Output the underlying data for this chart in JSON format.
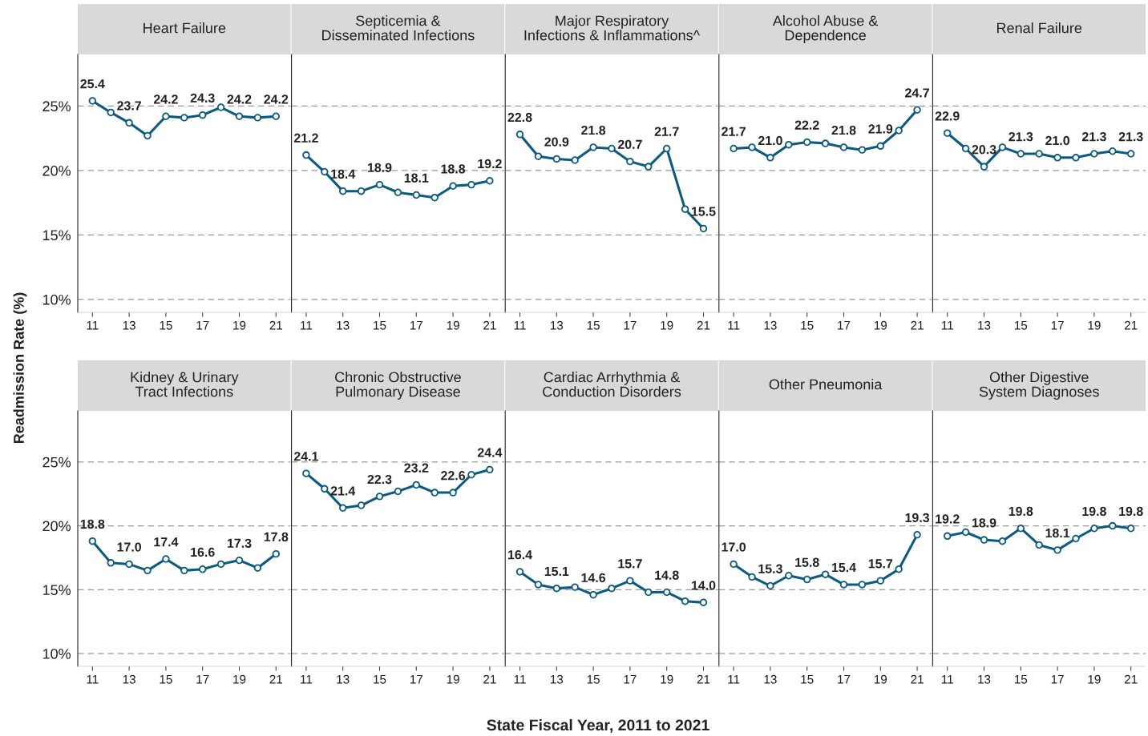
{
  "chart_data": [
    {
      "type": "line",
      "title": "Heart Failure",
      "ylabel": "Readmission Rate (%)",
      "x": [
        11,
        12,
        13,
        14,
        15,
        16,
        17,
        18,
        19,
        20,
        21
      ],
      "xlim": [
        10.2,
        21.8
      ],
      "xticks": [
        11,
        13,
        15,
        17,
        19,
        21
      ],
      "ylim": [
        9,
        29
      ],
      "yticks": [
        {
          "value": 10,
          "label": "10%"
        },
        {
          "value": 15,
          "label": "15%"
        },
        {
          "value": 20,
          "label": "20%"
        },
        {
          "value": 25,
          "label": "25%"
        }
      ],
      "grid": "y",
      "marker": "circle",
      "line_style": "solid",
      "tick_labels": "xy",
      "series": [
        {
          "color": "#0b5a80",
          "values": [
            25.4,
            24.5,
            23.7,
            22.7,
            24.2,
            24.1,
            24.3,
            24.9,
            24.2,
            24.1,
            24.2
          ],
          "value_labels": [
            "25.4",
            null,
            "23.7",
            null,
            "24.2",
            null,
            "24.3",
            null,
            "24.2",
            null,
            "24.2"
          ]
        }
      ]
    },
    {
      "type": "line",
      "title": "Septicemia &\nDisseminated Infections",
      "x": [
        11,
        12,
        13,
        14,
        15,
        16,
        17,
        18,
        19,
        20,
        21
      ],
      "xlim": [
        10.2,
        21.8
      ],
      "xticks": [
        11,
        13,
        15,
        17,
        19,
        21
      ],
      "ylim": [
        9,
        29
      ],
      "yticks": [
        {
          "value": 10,
          "label": null
        },
        {
          "value": 15,
          "label": null
        },
        {
          "value": 20,
          "label": null
        },
        {
          "value": 25,
          "label": null
        }
      ],
      "grid": "y",
      "marker": "circle",
      "line_style": "solid",
      "tick_labels": "x",
      "series": [
        {
          "color": "#0b5a80",
          "values": [
            21.2,
            19.9,
            18.4,
            18.4,
            18.9,
            18.3,
            18.1,
            17.9,
            18.8,
            18.9,
            19.2
          ],
          "value_labels": [
            "21.2",
            null,
            "18.4",
            null,
            "18.9",
            null,
            "18.1",
            null,
            "18.8",
            null,
            "19.2"
          ]
        }
      ]
    },
    {
      "type": "line",
      "title": "Major Respiratory\nInfections & Inflammations^",
      "x": [
        11,
        12,
        13,
        14,
        15,
        16,
        17,
        18,
        19,
        20,
        21
      ],
      "xlim": [
        10.2,
        21.8
      ],
      "xticks": [
        11,
        13,
        15,
        17,
        19,
        21
      ],
      "ylim": [
        9,
        29
      ],
      "yticks": [
        {
          "value": 10,
          "label": null
        },
        {
          "value": 15,
          "label": null
        },
        {
          "value": 20,
          "label": null
        },
        {
          "value": 25,
          "label": null
        }
      ],
      "grid": "y",
      "marker": "circle",
      "line_style": "solid",
      "tick_labels": "x",
      "series": [
        {
          "color": "#0b5a80",
          "values": [
            22.8,
            21.1,
            20.9,
            20.8,
            21.8,
            21.7,
            20.7,
            20.3,
            21.7,
            17.0,
            15.5
          ],
          "value_labels": [
            "22.8",
            null,
            "20.9",
            null,
            "21.8",
            null,
            "20.7",
            null,
            "21.7",
            null,
            "15.5"
          ]
        }
      ]
    },
    {
      "type": "line",
      "title": "Alcohol Abuse &\nDependence",
      "x": [
        11,
        12,
        13,
        14,
        15,
        16,
        17,
        18,
        19,
        20,
        21
      ],
      "xlim": [
        10.2,
        21.8
      ],
      "xticks": [
        11,
        13,
        15,
        17,
        19,
        21
      ],
      "ylim": [
        9,
        29
      ],
      "yticks": [
        {
          "value": 10,
          "label": null
        },
        {
          "value": 15,
          "label": null
        },
        {
          "value": 20,
          "label": null
        },
        {
          "value": 25,
          "label": null
        }
      ],
      "grid": "y",
      "marker": "circle",
      "line_style": "solid",
      "tick_labels": "x",
      "series": [
        {
          "color": "#0b5a80",
          "values": [
            21.7,
            21.8,
            21.0,
            22.0,
            22.2,
            22.1,
            21.8,
            21.6,
            21.9,
            23.1,
            24.7
          ],
          "value_labels": [
            "21.7",
            null,
            "21.0",
            null,
            "22.2",
            null,
            "21.8",
            null,
            "21.9",
            null,
            "24.7"
          ]
        }
      ]
    },
    {
      "type": "line",
      "title": "Renal Failure",
      "x": [
        11,
        12,
        13,
        14,
        15,
        16,
        17,
        18,
        19,
        20,
        21
      ],
      "xlim": [
        10.2,
        21.8
      ],
      "xticks": [
        11,
        13,
        15,
        17,
        19,
        21
      ],
      "ylim": [
        9,
        29
      ],
      "yticks": [
        {
          "value": 10,
          "label": null
        },
        {
          "value": 15,
          "label": null
        },
        {
          "value": 20,
          "label": null
        },
        {
          "value": 25,
          "label": null
        }
      ],
      "grid": "y",
      "marker": "circle",
      "line_style": "solid",
      "tick_labels": "x",
      "series": [
        {
          "color": "#0b5a80",
          "values": [
            22.9,
            21.7,
            20.3,
            21.8,
            21.3,
            21.3,
            21.0,
            21.0,
            21.3,
            21.5,
            21.3
          ],
          "value_labels": [
            "22.9",
            null,
            "20.3",
            null,
            "21.3",
            null,
            "21.0",
            null,
            "21.3",
            null,
            "21.3"
          ]
        }
      ]
    },
    {
      "type": "line",
      "title": "Kidney & Urinary\nTract Infections",
      "x": [
        11,
        12,
        13,
        14,
        15,
        16,
        17,
        18,
        19,
        20,
        21
      ],
      "xlim": [
        10.2,
        21.8
      ],
      "xticks": [
        11,
        13,
        15,
        17,
        19,
        21
      ],
      "ylim": [
        9,
        29
      ],
      "yticks": [
        {
          "value": 10,
          "label": "10%"
        },
        {
          "value": 15,
          "label": "15%"
        },
        {
          "value": 20,
          "label": "20%"
        },
        {
          "value": 25,
          "label": "25%"
        }
      ],
      "grid": "y",
      "marker": "circle",
      "line_style": "solid",
      "tick_labels": "xy",
      "series": [
        {
          "color": "#0b5a80",
          "values": [
            18.8,
            17.1,
            17.0,
            16.5,
            17.4,
            16.5,
            16.6,
            17.0,
            17.3,
            16.7,
            17.8
          ],
          "value_labels": [
            "18.8",
            null,
            "17.0",
            null,
            "17.4",
            null,
            "16.6",
            null,
            "17.3",
            null,
            "17.8"
          ]
        }
      ]
    },
    {
      "type": "line",
      "title": "Chronic Obstructive\nPulmonary Disease",
      "x": [
        11,
        12,
        13,
        14,
        15,
        16,
        17,
        18,
        19,
        20,
        21
      ],
      "xlim": [
        10.2,
        21.8
      ],
      "xticks": [
        11,
        13,
        15,
        17,
        19,
        21
      ],
      "ylim": [
        9,
        29
      ],
      "yticks": [
        {
          "value": 10,
          "label": null
        },
        {
          "value": 15,
          "label": null
        },
        {
          "value": 20,
          "label": null
        },
        {
          "value": 25,
          "label": null
        }
      ],
      "grid": "y",
      "marker": "circle",
      "line_style": "solid",
      "tick_labels": "x",
      "series": [
        {
          "color": "#0b5a80",
          "values": [
            24.1,
            22.9,
            21.4,
            21.6,
            22.3,
            22.7,
            23.2,
            22.6,
            22.6,
            24.0,
            24.4
          ],
          "value_labels": [
            "24.1",
            null,
            "21.4",
            null,
            "22.3",
            null,
            "23.2",
            null,
            "22.6",
            null,
            "24.4"
          ]
        }
      ]
    },
    {
      "type": "line",
      "title": "Cardiac Arrhythmia &\nConduction Disorders",
      "xlabel": "State Fiscal Year, 2011 to 2021",
      "x": [
        11,
        12,
        13,
        14,
        15,
        16,
        17,
        18,
        19,
        20,
        21
      ],
      "xlim": [
        10.2,
        21.8
      ],
      "xticks": [
        11,
        13,
        15,
        17,
        19,
        21
      ],
      "ylim": [
        9,
        29
      ],
      "yticks": [
        {
          "value": 10,
          "label": null
        },
        {
          "value": 15,
          "label": null
        },
        {
          "value": 20,
          "label": null
        },
        {
          "value": 25,
          "label": null
        }
      ],
      "grid": "y",
      "marker": "circle",
      "line_style": "solid",
      "tick_labels": "x",
      "series": [
        {
          "color": "#0b5a80",
          "values": [
            16.4,
            15.4,
            15.1,
            15.2,
            14.6,
            15.1,
            15.7,
            14.8,
            14.8,
            14.1,
            14.0
          ],
          "value_labels": [
            "16.4",
            null,
            "15.1",
            null,
            "14.6",
            null,
            "15.7",
            null,
            "14.8",
            null,
            "14.0"
          ]
        }
      ]
    },
    {
      "type": "line",
      "title": "Other Pneumonia",
      "x": [
        11,
        12,
        13,
        14,
        15,
        16,
        17,
        18,
        19,
        20,
        21
      ],
      "xlim": [
        10.2,
        21.8
      ],
      "xticks": [
        11,
        13,
        15,
        17,
        19,
        21
      ],
      "ylim": [
        9,
        29
      ],
      "yticks": [
        {
          "value": 10,
          "label": null
        },
        {
          "value": 15,
          "label": null
        },
        {
          "value": 20,
          "label": null
        },
        {
          "value": 25,
          "label": null
        }
      ],
      "grid": "y",
      "marker": "circle",
      "line_style": "solid",
      "tick_labels": "x",
      "series": [
        {
          "color": "#0b5a80",
          "values": [
            17.0,
            16.0,
            15.3,
            16.1,
            15.8,
            16.2,
            15.4,
            15.4,
            15.7,
            16.6,
            19.3
          ],
          "value_labels": [
            "17.0",
            null,
            "15.3",
            null,
            "15.8",
            null,
            "15.4",
            null,
            "15.7",
            null,
            "19.3"
          ]
        }
      ]
    },
    {
      "type": "line",
      "title": "Other Digestive\nSystem Diagnoses",
      "x": [
        11,
        12,
        13,
        14,
        15,
        16,
        17,
        18,
        19,
        20,
        21
      ],
      "xlim": [
        10.2,
        21.8
      ],
      "xticks": [
        11,
        13,
        15,
        17,
        19,
        21
      ],
      "ylim": [
        9,
        29
      ],
      "yticks": [
        {
          "value": 10,
          "label": null
        },
        {
          "value": 15,
          "label": null
        },
        {
          "value": 20,
          "label": null
        },
        {
          "value": 25,
          "label": null
        }
      ],
      "grid": "y",
      "marker": "circle",
      "line_style": "solid",
      "tick_labels": "x",
      "series": [
        {
          "color": "#0b5a80",
          "values": [
            19.2,
            19.5,
            18.9,
            18.8,
            19.8,
            18.5,
            18.1,
            19.0,
            19.8,
            20.0,
            19.8
          ],
          "value_labels": [
            "19.2",
            null,
            "18.9",
            null,
            "19.8",
            null,
            "18.1",
            null,
            "19.8",
            null,
            "19.8"
          ]
        }
      ]
    }
  ]
}
